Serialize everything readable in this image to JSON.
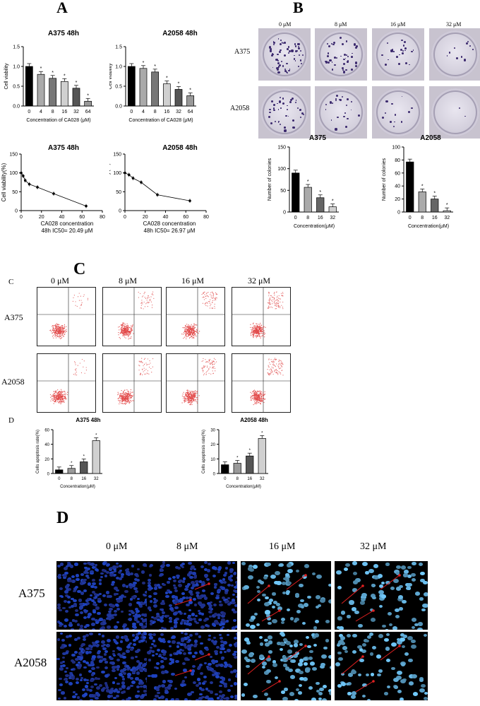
{
  "labels": {
    "A": "A",
    "B": "B",
    "C_big": "C",
    "C_small": "C",
    "D_small": "D",
    "D_big": "D"
  },
  "panelA": {
    "bar1_title": "A375  48h",
    "bar2_title": "A2058  48h",
    "bar_ylabel": "Cell viability",
    "bar_xlabel": "Concentration of CA028 (μM)",
    "line1_title": "A375  48h",
    "line2_title": "A2058  48h",
    "line_ylabel": "Cell viability(%)",
    "line1_xlabel": "CA028  concentration",
    "line1_ic50": "48h  IC50= 20.49 μM",
    "line2_xlabel": "CA028  concentration",
    "line2_ic50": "48h  IC50= 26.97 μM"
  },
  "panelB": {
    "conc_labels": [
      "0 μM",
      "8 μM",
      "16 μM",
      "32 μM"
    ],
    "row_labels": [
      "A375",
      "A2058"
    ],
    "bar1_title": "A375",
    "bar2_title": "A2058",
    "ylabel": "Number of colonies",
    "xlabel": "Concentration(μM)"
  },
  "panelC": {
    "conc_labels": [
      "0 μM",
      "8 μM",
      "16 μM",
      "32 μM"
    ],
    "row_labels": [
      "A375",
      "A2058"
    ]
  },
  "panelD_bars": {
    "bar1_title": "A375  48h",
    "bar2_title": "A2058  48h",
    "ylabel": "Cells apoptosis rate(%)",
    "xlabel": "Concentration(μM)"
  },
  "panelD_img": {
    "conc_labels": [
      "0 μM",
      "8 μM",
      "16 μM",
      "32 μM"
    ],
    "row_labels": [
      "A375",
      "A2058"
    ]
  },
  "chart_data": [
    {
      "type": "bar",
      "title": "A375  48h",
      "xlabel": "Concentration of CA028 (μM)",
      "ylabel": "Cell viability",
      "categories": [
        "0",
        "4",
        "8",
        "16",
        "32",
        "64"
      ],
      "values": [
        1.0,
        0.8,
        0.7,
        0.62,
        0.45,
        0.12
      ],
      "ylim": [
        0,
        1.5
      ],
      "yticks": [
        "0.0",
        "0.5",
        "1.0",
        "1.5"
      ],
      "colors": [
        "#000000",
        "#aaaaaa",
        "#777777",
        "#d0d0d0",
        "#555555",
        "#999999"
      ]
    },
    {
      "type": "bar",
      "title": "A2058  48h",
      "xlabel": "Concentration of CA028 (μM)",
      "ylabel": "Cell viability",
      "categories": [
        "0",
        "4",
        "8",
        "16",
        "32",
        "64"
      ],
      "values": [
        1.0,
        0.95,
        0.86,
        0.56,
        0.42,
        0.26
      ],
      "ylim": [
        0,
        1.5
      ],
      "yticks": [
        "0.0",
        "0.5",
        "1.0",
        "1.5"
      ],
      "colors": [
        "#000000",
        "#aaaaaa",
        "#777777",
        "#d0d0d0",
        "#555555",
        "#999999"
      ]
    },
    {
      "type": "line",
      "title": "A375  48h",
      "ylabel": "Cell viability(%)",
      "x": [
        0,
        2,
        4,
        8,
        16,
        32,
        64
      ],
      "y": [
        100,
        92,
        80,
        70,
        62,
        45,
        12
      ],
      "xlim": [
        0,
        80
      ],
      "ylim": [
        0,
        150
      ],
      "xticks": [
        "0",
        "20",
        "40",
        "60",
        "80"
      ],
      "yticks": [
        "0",
        "50",
        "100",
        "150"
      ]
    },
    {
      "type": "line",
      "title": "A2058  48h",
      "ylabel": "Cell viability(%)",
      "x": [
        0,
        4,
        8,
        16,
        32,
        64
      ],
      "y": [
        100,
        95,
        86,
        75,
        42,
        26
      ],
      "xlim": [
        0,
        80
      ],
      "ylim": [
        0,
        150
      ],
      "xticks": [
        "0",
        "20",
        "40",
        "60",
        "80"
      ],
      "yticks": [
        "0",
        "50",
        "100",
        "150"
      ]
    },
    {
      "type": "bar",
      "title": "A375",
      "xlabel": "Concentration(μM)",
      "ylabel": "Number of colonies",
      "categories": [
        "0",
        "8",
        "16",
        "32"
      ],
      "values": [
        90,
        57,
        33,
        12
      ],
      "ylim": [
        0,
        150
      ],
      "yticks": [
        "0",
        "50",
        "100",
        "150"
      ],
      "colors": [
        "#000000",
        "#aaaaaa",
        "#666666",
        "#d0d0d0"
      ]
    },
    {
      "type": "bar",
      "title": "A2058",
      "xlabel": "Concentration(μM)",
      "ylabel": "Number of colonies",
      "categories": [
        "0",
        "8",
        "16",
        "32"
      ],
      "values": [
        77,
        31,
        20,
        2
      ],
      "ylim": [
        0,
        100
      ],
      "yticks": [
        "0",
        "20",
        "40",
        "60",
        "80",
        "100"
      ],
      "colors": [
        "#000000",
        "#aaaaaa",
        "#666666",
        "#d0d0d0"
      ]
    },
    {
      "type": "bar",
      "title": "A375  48h",
      "xlabel": "Concentration(μM)",
      "ylabel": "Cells apoptosis rate(%)",
      "categories": [
        "0",
        "8",
        "16",
        "32"
      ],
      "values": [
        5,
        7,
        16,
        45
      ],
      "ylim": [
        0,
        60
      ],
      "yticks": [
        "0",
        "20",
        "40",
        "60"
      ],
      "colors": [
        "#000000",
        "#999999",
        "#555555",
        "#d0d0d0"
      ]
    },
    {
      "type": "bar",
      "title": "A2058  48h",
      "xlabel": "Concentration(μM)",
      "ylabel": "Cells apoptosis rate(%)",
      "categories": [
        "0",
        "8",
        "16",
        "32"
      ],
      "values": [
        6,
        7,
        12,
        24
      ],
      "ylim": [
        0,
        30
      ],
      "yticks": [
        "0",
        "10",
        "20",
        "30"
      ],
      "colors": [
        "#000000",
        "#999999",
        "#555555",
        "#d0d0d0"
      ]
    }
  ]
}
